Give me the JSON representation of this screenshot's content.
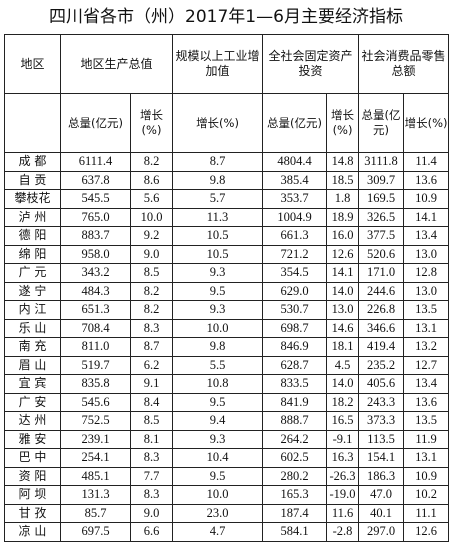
{
  "header": {
    "title": "四川省各市（州）2017年1—6月主要经济指标"
  },
  "table": {
    "groups": [
      "地区",
      "地区生产总值",
      "规模以上工业增加值",
      "全社会固定资产投资",
      "社会消费品零售总额"
    ],
    "subheaders": [
      "总量(亿元)",
      "增长(%)",
      "增长(%)",
      "总量(亿元)",
      "增长(%)",
      "总量(亿元)",
      "增长(%)"
    ],
    "rows": [
      [
        "成 都",
        "6111.4",
        "8.2",
        "8.7",
        "4804.4",
        "14.8",
        "3111.8",
        "11.4"
      ],
      [
        "自 贡",
        "637.8",
        "8.6",
        "9.8",
        "385.4",
        "18.5",
        "309.7",
        "13.6"
      ],
      [
        "攀枝花",
        "545.5",
        "5.6",
        "5.7",
        "353.7",
        "1.8",
        "169.5",
        "10.9"
      ],
      [
        "泸 州",
        "765.0",
        "10.0",
        "11.3",
        "1004.9",
        "18.9",
        "326.5",
        "14.1"
      ],
      [
        "德 阳",
        "883.7",
        "9.2",
        "10.5",
        "661.3",
        "16.0",
        "377.5",
        "13.4"
      ],
      [
        "绵 阳",
        "958.0",
        "9.0",
        "10.5",
        "721.2",
        "12.6",
        "520.6",
        "13.0"
      ],
      [
        "广 元",
        "343.2",
        "8.5",
        "9.3",
        "354.5",
        "14.1",
        "171.0",
        "12.8"
      ],
      [
        "遂 宁",
        "484.3",
        "8.2",
        "9.5",
        "629.0",
        "14.0",
        "244.6",
        "13.0"
      ],
      [
        "内 江",
        "651.3",
        "8.2",
        "9.3",
        "530.7",
        "13.0",
        "226.8",
        "13.5"
      ],
      [
        "乐 山",
        "708.4",
        "8.3",
        "10.0",
        "698.7",
        "14.6",
        "346.6",
        "13.1"
      ],
      [
        "南 充",
        "811.0",
        "8.7",
        "9.8",
        "846.9",
        "18.1",
        "419.4",
        "13.2"
      ],
      [
        "眉 山",
        "519.7",
        "6.2",
        "5.5",
        "628.7",
        "4.5",
        "235.2",
        "12.7"
      ],
      [
        "宜 宾",
        "835.8",
        "9.1",
        "10.8",
        "833.5",
        "14.0",
        "405.6",
        "13.4"
      ],
      [
        "广 安",
        "545.6",
        "8.4",
        "9.5",
        "841.9",
        "18.2",
        "243.3",
        "13.6"
      ],
      [
        "达 州",
        "752.5",
        "8.5",
        "9.4",
        "888.7",
        "16.5",
        "373.3",
        "13.5"
      ],
      [
        "雅 安",
        "239.1",
        "8.1",
        "9.3",
        "264.2",
        "-9.1",
        "113.5",
        "11.9"
      ],
      [
        "巴 中",
        "254.1",
        "8.3",
        "10.4",
        "602.5",
        "16.3",
        "154.1",
        "13.1"
      ],
      [
        "资 阳",
        "485.1",
        "7.7",
        "9.5",
        "280.2",
        "-26.3",
        "186.3",
        "10.9"
      ],
      [
        "阿 坝",
        "131.3",
        "8.3",
        "10.0",
        "165.3",
        "-19.0",
        "47.0",
        "10.2"
      ],
      [
        "甘 孜",
        "85.7",
        "9.0",
        "23.0",
        "187.4",
        "11.6",
        "40.1",
        "11.1"
      ],
      [
        "凉 山",
        "697.5",
        "6.6",
        "4.7",
        "584.1",
        "-2.8",
        "297.0",
        "12.6"
      ]
    ]
  }
}
